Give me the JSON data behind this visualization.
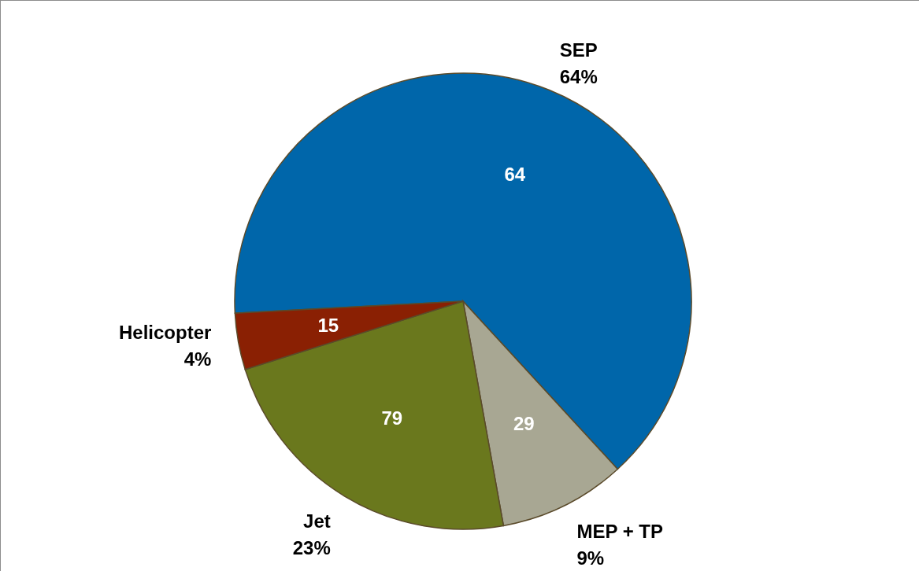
{
  "chart_data": {
    "type": "pie",
    "categories": [
      "SEP",
      "MEP + TP",
      "Jet",
      "Helicopter"
    ],
    "values": [
      64,
      9,
      23,
      4
    ],
    "colors": [
      "#0066aa",
      "#a8a793",
      "#6a781d",
      "#8a2003"
    ],
    "value_labels": [
      "64%",
      "9%",
      "23%",
      "4%"
    ],
    "annotations": [
      {
        "text": "64",
        "x": "SEP"
      },
      {
        "text": "29",
        "x": "MEP + TP"
      },
      {
        "text": "79",
        "x": "Jet"
      },
      {
        "text": "15",
        "x": "Helicopter"
      }
    ]
  }
}
